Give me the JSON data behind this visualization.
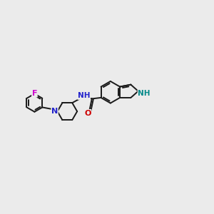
{
  "background_color": "#ebebeb",
  "bond_color": "#1a1a1a",
  "bond_width": 1.4,
  "atom_colors": {
    "N": "#2222cc",
    "NH_indole": "#008888",
    "O": "#cc0000",
    "F": "#cc00cc"
  },
  "font_size": 7.5
}
